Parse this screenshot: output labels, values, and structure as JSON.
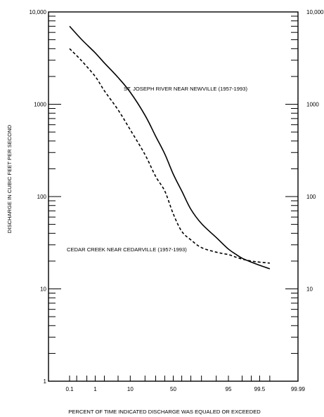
{
  "chart_data": {
    "type": "line",
    "xlabel": "PERCENT OF TIME INDICATED DISCHARGE WAS EQUALED OR EXCEEDED",
    "ylabel": "DISCHARGE IN CUBIC FEET PER SECOND",
    "xscale": "probability",
    "yscale": "log",
    "xlim": [
      0.01,
      99.99
    ],
    "ylim": [
      1,
      10000
    ],
    "xticks": [
      "0.1",
      "1",
      "10",
      "50",
      "95",
      "99.5",
      "99.99"
    ],
    "xtick_values": [
      0.1,
      1,
      10,
      50,
      95,
      99.5,
      99.99
    ],
    "yticks_left": [
      "1",
      "10",
      "100",
      "1000",
      "10,000"
    ],
    "yticks_right": [
      "10",
      "100",
      "1000",
      "10,000"
    ],
    "ytick_values_left": [
      1,
      10,
      100,
      1000,
      10000
    ],
    "ytick_values_right": [
      10,
      100,
      1000,
      10000
    ],
    "grid": false,
    "series": [
      {
        "name": "ST. JOSEPH RIVER NEAR NEWVILLE (1957-1993)",
        "line_style": "solid",
        "x": [
          0.1,
          0.3,
          1,
          2,
          5,
          10,
          20,
          30,
          40,
          50,
          60,
          70,
          80,
          90,
          95,
          97,
          98,
          99,
          99.5,
          99.8
        ],
        "y": [
          7000,
          5100,
          3600,
          2800,
          1950,
          1350,
          760,
          450,
          290,
          175,
          115,
          73,
          51,
          36,
          27,
          23.5,
          21.5,
          19.5,
          18,
          16.5
        ]
      },
      {
        "name": "CEDAR CREEK NEAR CEDARVILLE (1957-1993)",
        "line_style": "dashed",
        "x": [
          0.1,
          0.3,
          1,
          2,
          5,
          10,
          20,
          30,
          40,
          50,
          60,
          70,
          80,
          90,
          95,
          97,
          98,
          99,
          99.5,
          99.8
        ],
        "y": [
          4000,
          3000,
          2000,
          1400,
          870,
          530,
          285,
          165,
          115,
          65,
          42,
          34,
          28,
          25,
          23.5,
          22,
          21,
          20,
          19.5,
          19
        ]
      }
    ]
  }
}
